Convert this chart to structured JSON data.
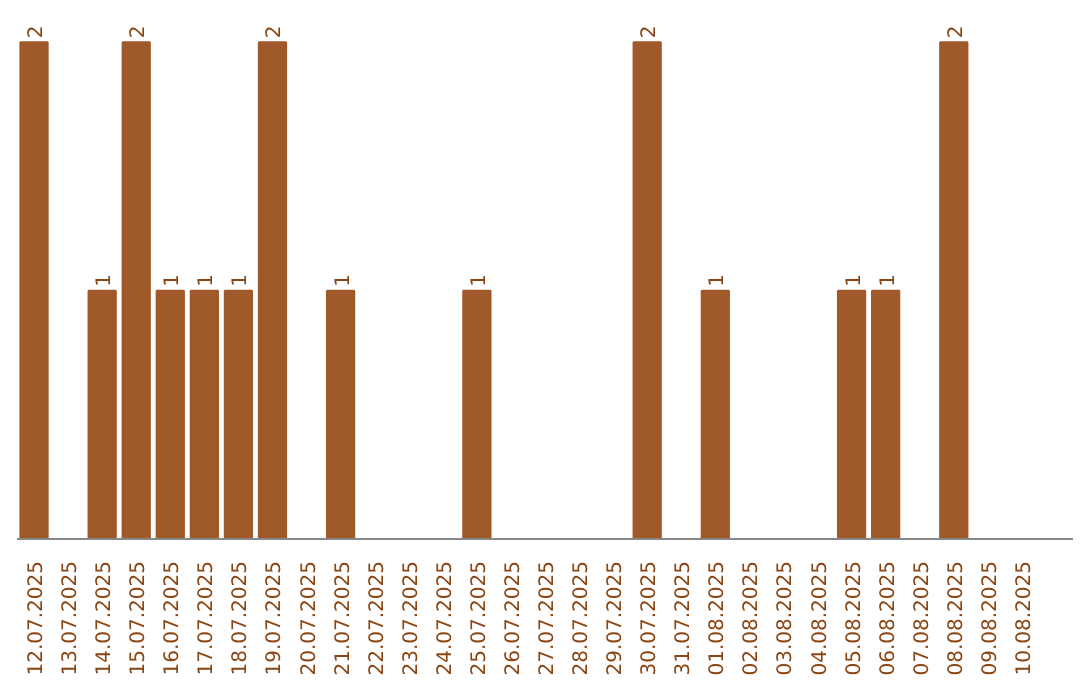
{
  "chart_data": {
    "type": "bar",
    "categories": [
      "12.07.2025",
      "13.07.2025",
      "14.07.2025",
      "15.07.2025",
      "16.07.2025",
      "17.07.2025",
      "18.07.2025",
      "19.07.2025",
      "20.07.2025",
      "21.07.2025",
      "22.07.2025",
      "23.07.2025",
      "24.07.2025",
      "25.07.2025",
      "26.07.2025",
      "27.07.2025",
      "28.07.2025",
      "29.07.2025",
      "30.07.2025",
      "31.07.2025",
      "01.08.2025",
      "02.08.2025",
      "03.08.2025",
      "04.08.2025",
      "05.08.2025",
      "06.08.2025",
      "07.08.2025",
      "08.08.2025",
      "09.08.2025",
      "10.08.2025"
    ],
    "values": [
      2,
      0,
      1,
      2,
      1,
      1,
      1,
      2,
      0,
      1,
      0,
      0,
      0,
      1,
      0,
      0,
      0,
      0,
      2,
      0,
      1,
      0,
      0,
      0,
      1,
      1,
      0,
      2,
      0,
      0
    ],
    "value_labels": [
      "2",
      null,
      "1",
      "2",
      "1",
      "1",
      "1",
      "2",
      null,
      "1",
      null,
      null,
      null,
      "1",
      null,
      null,
      null,
      null,
      "2",
      null,
      "1",
      null,
      null,
      null,
      "1",
      "1",
      null,
      "2",
      null,
      null
    ],
    "color": "#a0592a",
    "grid": false
  }
}
